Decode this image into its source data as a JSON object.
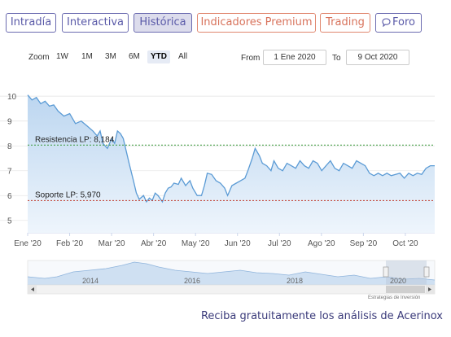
{
  "tabs": [
    {
      "label": "Intradía",
      "active": false,
      "style": "normal"
    },
    {
      "label": "Interactiva",
      "active": false,
      "style": "normal"
    },
    {
      "label": "Histórica",
      "active": true,
      "style": "normal"
    },
    {
      "label": "Indicadores Premium",
      "active": false,
      "style": "premium"
    },
    {
      "label": "Trading",
      "active": false,
      "style": "premium"
    },
    {
      "label": "Foro",
      "active": false,
      "style": "normal",
      "icon": "chat-bubble-icon"
    }
  ],
  "zoom": {
    "label": "Zoom",
    "options": [
      "1W",
      "1M",
      "3M",
      "6M",
      "YTD",
      "All"
    ],
    "selected": "YTD"
  },
  "range": {
    "from_label": "From",
    "from_value": "1 Ene 2020",
    "to_label": "To",
    "to_value": "9 Oct 2020"
  },
  "chart_data": {
    "type": "area",
    "title": "",
    "xlabel": "",
    "ylabel": "",
    "ylim": [
      4.5,
      10.4
    ],
    "y_ticks": [
      "10",
      "9",
      "8",
      "7",
      "6",
      "5"
    ],
    "x_ticks": [
      "Ene '20",
      "Feb '20",
      "Mar '20",
      "Abr '20",
      "May '20",
      "Jun '20",
      "Jul '20",
      "Ago '20",
      "Sep '20",
      "Oct '20"
    ],
    "grid": true,
    "series": [
      {
        "values": [
          [
            0,
            10.05
          ],
          [
            3,
            9.85
          ],
          [
            6,
            9.95
          ],
          [
            9,
            9.7
          ],
          [
            12,
            9.8
          ],
          [
            15,
            9.6
          ],
          [
            18,
            9.65
          ],
          [
            21,
            9.4
          ],
          [
            25,
            9.2
          ],
          [
            29,
            9.3
          ],
          [
            33,
            8.9
          ],
          [
            37,
            9.0
          ],
          [
            41,
            8.8
          ],
          [
            45,
            8.6
          ],
          [
            48,
            8.4
          ],
          [
            50,
            8.6
          ],
          [
            52,
            8.1
          ],
          [
            55,
            7.9
          ],
          [
            58,
            8.3
          ],
          [
            60,
            8.1
          ],
          [
            62,
            8.6
          ],
          [
            64,
            8.5
          ],
          [
            66,
            8.3
          ],
          [
            68,
            7.8
          ],
          [
            70,
            7.3
          ],
          [
            73,
            6.6
          ],
          [
            75,
            6.1
          ],
          [
            77,
            5.85
          ],
          [
            80,
            6.0
          ],
          [
            82,
            5.75
          ],
          [
            84,
            5.9
          ],
          [
            86,
            5.8
          ],
          [
            88,
            6.1
          ],
          [
            90,
            6.0
          ],
          [
            93,
            5.75
          ],
          [
            95,
            6.1
          ],
          [
            97,
            6.3
          ],
          [
            99,
            6.35
          ],
          [
            101,
            6.5
          ],
          [
            104,
            6.45
          ],
          [
            106,
            6.7
          ],
          [
            109,
            6.4
          ],
          [
            112,
            6.6
          ],
          [
            114,
            6.3
          ],
          [
            117,
            6.0
          ],
          [
            120,
            6.0
          ],
          [
            122,
            6.4
          ],
          [
            124,
            6.9
          ],
          [
            127,
            6.85
          ],
          [
            130,
            6.6
          ],
          [
            133,
            6.5
          ],
          [
            136,
            6.3
          ],
          [
            138,
            6.0
          ],
          [
            141,
            6.4
          ],
          [
            144,
            6.5
          ],
          [
            147,
            6.6
          ],
          [
            150,
            6.7
          ],
          [
            152,
            7.0
          ],
          [
            155,
            7.5
          ],
          [
            157,
            7.9
          ],
          [
            160,
            7.6
          ],
          [
            162,
            7.3
          ],
          [
            165,
            7.2
          ],
          [
            168,
            7.0
          ],
          [
            170,
            7.4
          ],
          [
            173,
            7.1
          ],
          [
            176,
            7.0
          ],
          [
            179,
            7.3
          ],
          [
            182,
            7.2
          ],
          [
            185,
            7.1
          ],
          [
            188,
            7.4
          ],
          [
            191,
            7.2
          ],
          [
            194,
            7.1
          ],
          [
            197,
            7.4
          ],
          [
            200,
            7.3
          ],
          [
            203,
            7.0
          ],
          [
            206,
            7.2
          ],
          [
            209,
            7.4
          ],
          [
            212,
            7.1
          ],
          [
            215,
            7.0
          ],
          [
            218,
            7.3
          ],
          [
            221,
            7.2
          ],
          [
            224,
            7.1
          ],
          [
            227,
            7.4
          ],
          [
            230,
            7.3
          ],
          [
            233,
            7.2
          ],
          [
            236,
            6.9
          ],
          [
            239,
            6.8
          ],
          [
            242,
            6.9
          ],
          [
            245,
            6.8
          ],
          [
            248,
            6.9
          ],
          [
            251,
            6.8
          ],
          [
            254,
            6.85
          ],
          [
            257,
            6.9
          ],
          [
            260,
            6.7
          ],
          [
            263,
            6.9
          ],
          [
            266,
            6.8
          ],
          [
            269,
            6.9
          ],
          [
            272,
            6.85
          ],
          [
            275,
            7.1
          ],
          [
            278,
            7.2
          ],
          [
            281,
            7.2
          ]
        ]
      }
    ],
    "annotations": [
      {
        "label": "Resistencia LP: 8,184",
        "y": 8.03,
        "color": "#3c9a3c"
      },
      {
        "label": "Soporte LP: 5,970",
        "y": 5.8,
        "color": "#c0392b"
      }
    ]
  },
  "navigator": {
    "year_labels": [
      "2014",
      "2016",
      "2018",
      "2020"
    ]
  },
  "credit": "Estrategias de Inversión",
  "footer": {
    "text": "Reciba gratuitamente los análisis de Acerinox"
  },
  "colors": {
    "accent": "#5a5aa8",
    "premium": "#d8735c",
    "line": "#5b9bd5",
    "fill_top": "#bcd6f0",
    "fill_bottom": "#eef5fc"
  }
}
